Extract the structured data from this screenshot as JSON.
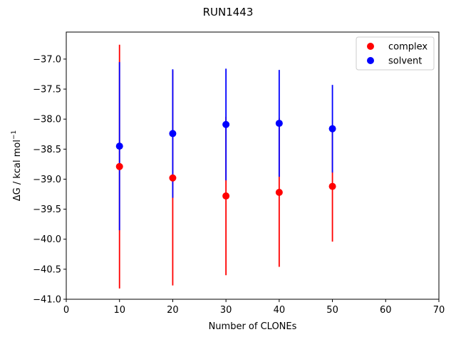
{
  "chart_data": {
    "type": "scatter",
    "title": "RUN1443",
    "xlabel": "Number of CLONEs",
    "ylabel_prefix": "ΔG / kcal mol",
    "ylabel_superscript": "−1",
    "xlim": [
      0,
      70
    ],
    "ylim": [
      -41.0,
      -36.55
    ],
    "xticks": [
      0,
      10,
      20,
      30,
      40,
      50,
      60,
      70
    ],
    "yticks": [
      -41.0,
      -40.5,
      -40.0,
      -39.5,
      -39.0,
      -38.5,
      -38.0,
      -37.5,
      -37.0
    ],
    "xtick_labels": [
      "0",
      "10",
      "20",
      "30",
      "40",
      "50",
      "60",
      "70"
    ],
    "ytick_labels": [
      "−41.0",
      "−40.5",
      "−40.0",
      "−39.5",
      "−39.0",
      "−38.5",
      "−38.0",
      "−37.5",
      "−37.0"
    ],
    "grid": false,
    "legend_position": "top-right",
    "series": [
      {
        "name": "complex",
        "color": "#ff0000",
        "x": [
          10,
          20,
          30,
          40,
          50
        ],
        "y": [
          -38.79,
          -38.98,
          -39.28,
          -39.22,
          -39.12
        ],
        "yerr": [
          2.03,
          1.79,
          1.32,
          1.24,
          0.92
        ]
      },
      {
        "name": "solvent",
        "color": "#0000ff",
        "x": [
          10,
          20,
          30,
          40,
          50
        ],
        "y": [
          -38.45,
          -38.24,
          -38.09,
          -38.07,
          -38.16
        ],
        "yerr": [
          1.4,
          1.07,
          0.93,
          0.89,
          0.73
        ]
      }
    ]
  }
}
